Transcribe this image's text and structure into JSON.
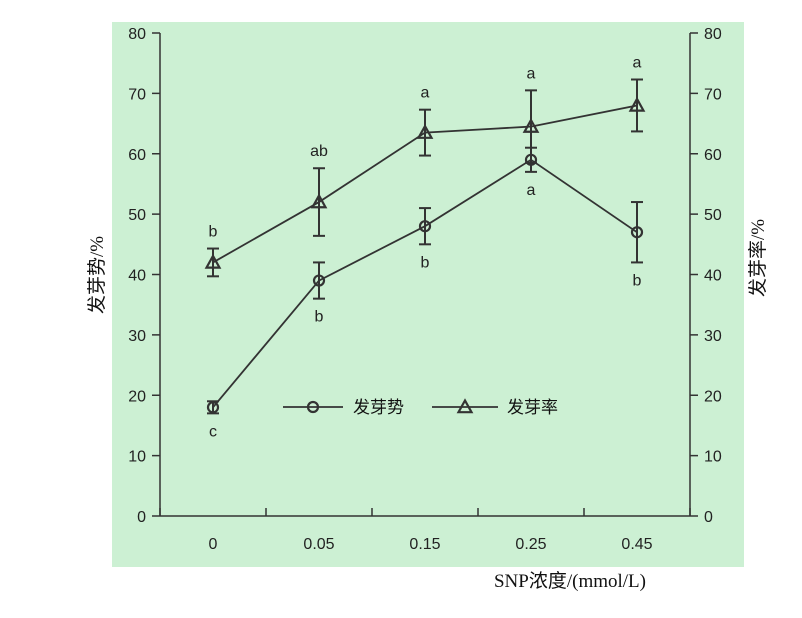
{
  "chart_data": {
    "type": "line",
    "title": "",
    "categories": [
      "0",
      "0.05",
      "0.15",
      "0.25",
      "0.45"
    ],
    "xlabel": "SNP浓度/(mmol/L)",
    "ylabel_left": "发芽势/%",
    "ylabel_right": "发芽率/%",
    "ylim": [
      0,
      80
    ],
    "yticks": [
      "0",
      "10",
      "20",
      "30",
      "40",
      "50",
      "60",
      "70",
      "80"
    ],
    "grid": false,
    "legend_position": "center",
    "series": [
      {
        "name": "发芽势",
        "marker": "circle",
        "values": [
          18,
          39,
          48,
          59,
          47
        ],
        "errors": [
          1,
          3,
          3,
          2,
          5
        ],
        "significance": [
          "c",
          "b",
          "b",
          "a",
          "b"
        ],
        "label_side": "below"
      },
      {
        "name": "发芽率",
        "marker": "triangle",
        "values": [
          42,
          52,
          63.5,
          64.5,
          68
        ],
        "errors": [
          2.3,
          5.6,
          3.8,
          6,
          4.3
        ],
        "significance": [
          "b",
          "ab",
          "a",
          "a",
          "a"
        ],
        "label_side": "above"
      }
    ],
    "colors": {
      "plot_background": "#ccf0d3",
      "line": "#333333"
    }
  }
}
